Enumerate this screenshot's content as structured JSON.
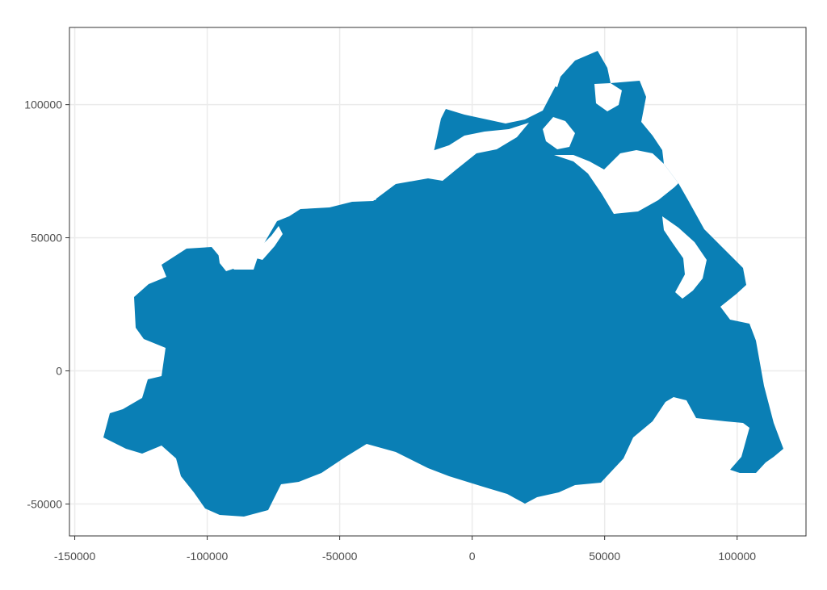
{
  "map": {
    "region_fill": "#0a7fb5",
    "panel_border": "#333333",
    "grid_color": "#ebebeb",
    "grid": true,
    "x_axis": {
      "range": [
        -152000,
        126000
      ],
      "ticks": [
        -150000,
        -100000,
        -50000,
        0,
        50000,
        100000
      ],
      "tick_labels": [
        "-150000",
        "-100000",
        "-50000",
        "0",
        "50000",
        "100000"
      ]
    },
    "y_axis": {
      "range": [
        -62000,
        129000
      ],
      "ticks": [
        -50000,
        0,
        50000,
        100000
      ],
      "tick_labels": [
        "-50000",
        "0",
        "50000",
        "100000"
      ]
    }
  }
}
